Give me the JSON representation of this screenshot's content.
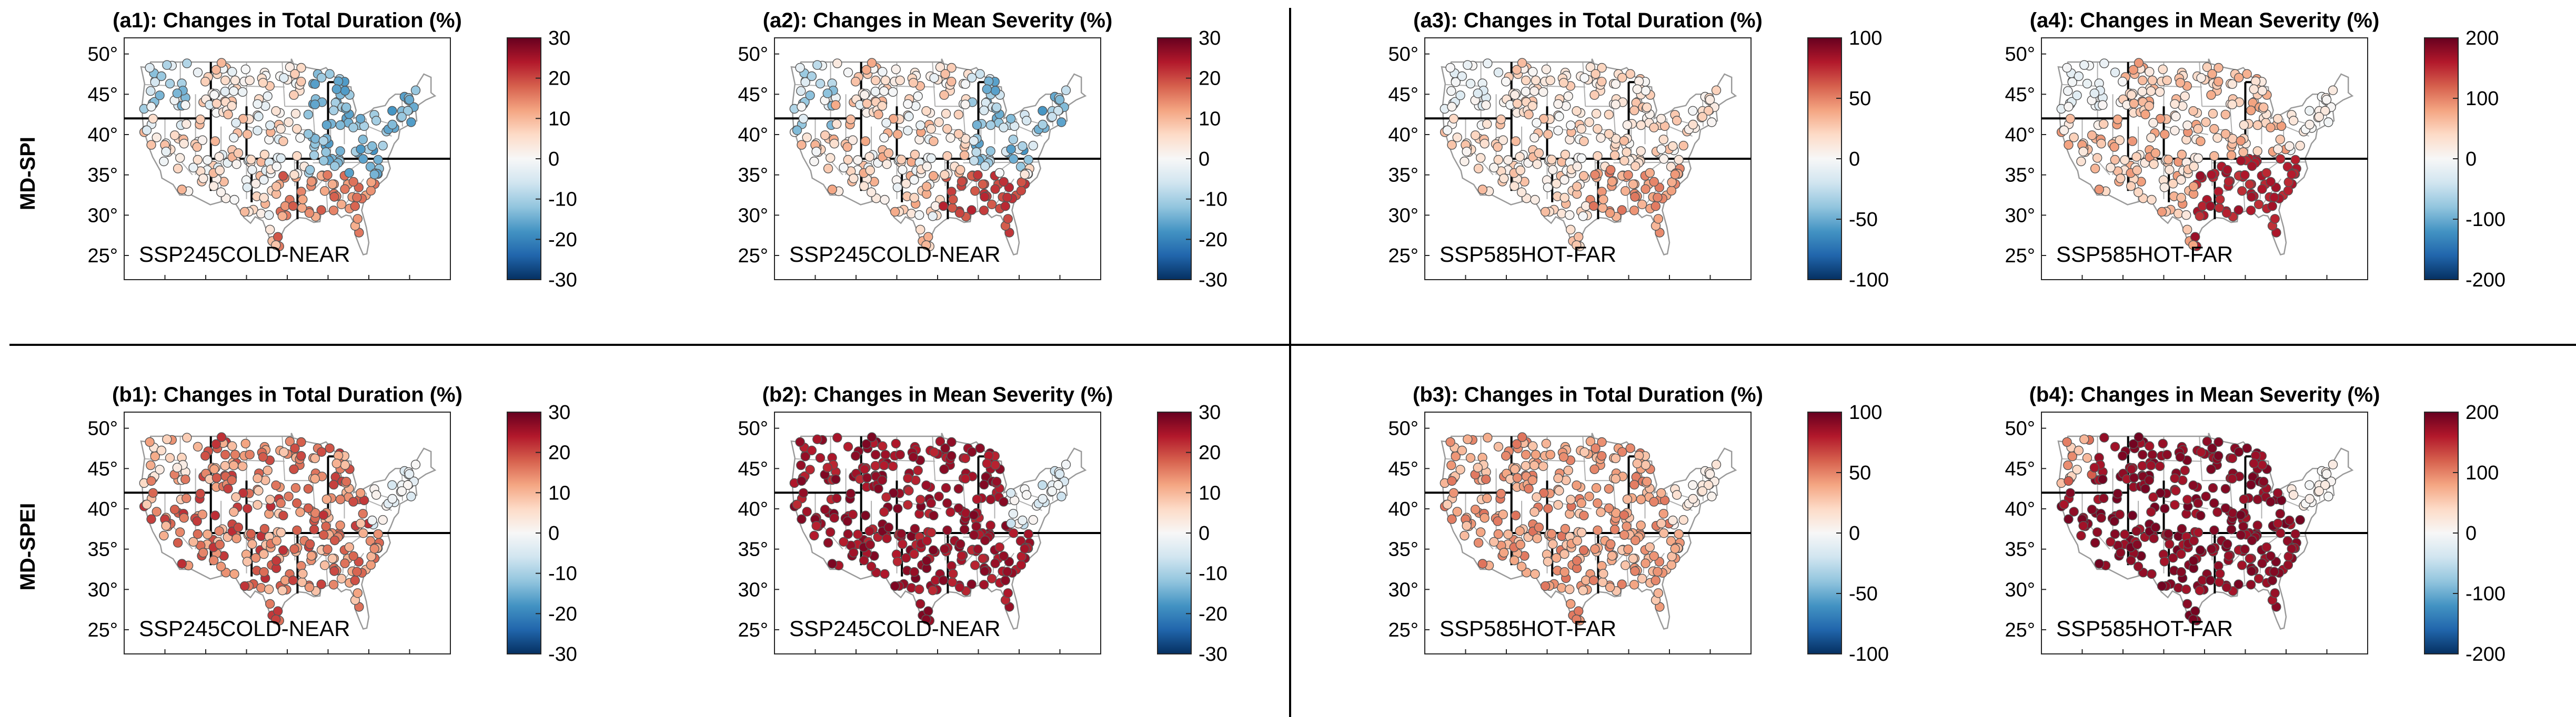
{
  "figure": {
    "rows": [
      {
        "label": "MD-SPI"
      },
      {
        "label": "MD-SPEI"
      }
    ],
    "lat_ticks": [
      "50°",
      "45°",
      "40°",
      "35°",
      "30°",
      "25°"
    ],
    "panels": [
      {
        "id": "a1",
        "title": "(a1): Changes in Total Duration (%)",
        "scenario": "SSP245COLD-NEAR",
        "colorbar": {
          "min": -30,
          "max": 30,
          "ticks": [
            "30",
            "20",
            "10",
            "0",
            "-10",
            "-20",
            "-30"
          ]
        }
      },
      {
        "id": "a2",
        "title": "(a2): Changes in Mean Severity (%)",
        "scenario": "SSP245COLD-NEAR",
        "colorbar": {
          "min": -30,
          "max": 30,
          "ticks": [
            "30",
            "20",
            "10",
            "0",
            "-10",
            "-20",
            "-30"
          ]
        }
      },
      {
        "id": "a3",
        "title": "(a3): Changes in Total Duration (%)",
        "scenario": "SSP585HOT-FAR",
        "colorbar": {
          "min": -100,
          "max": 100,
          "ticks": [
            "100",
            "50",
            "0",
            "-50",
            "-100"
          ]
        }
      },
      {
        "id": "a4",
        "title": "(a4): Changes in Mean Severity (%)",
        "scenario": "SSP585HOT-FAR",
        "colorbar": {
          "min": -200,
          "max": 200,
          "ticks": [
            "200",
            "100",
            "0",
            "-100",
            "-200"
          ]
        }
      },
      {
        "id": "b1",
        "title": "(b1): Changes in Total Duration (%)",
        "scenario": "SSP245COLD-NEAR",
        "colorbar": {
          "min": -30,
          "max": 30,
          "ticks": [
            "30",
            "20",
            "10",
            "0",
            "-10",
            "-20",
            "-30"
          ]
        }
      },
      {
        "id": "b2",
        "title": "(b2): Changes in Mean Severity (%)",
        "scenario": "SSP245COLD-NEAR",
        "colorbar": {
          "min": -30,
          "max": 30,
          "ticks": [
            "30",
            "20",
            "10",
            "0",
            "-10",
            "-20",
            "-30"
          ]
        }
      },
      {
        "id": "b3",
        "title": "(b3): Changes in Total Duration (%)",
        "scenario": "SSP585HOT-FAR",
        "colorbar": {
          "min": -100,
          "max": 100,
          "ticks": [
            "100",
            "50",
            "0",
            "-50",
            "-100"
          ]
        }
      },
      {
        "id": "b4",
        "title": "(b4): Changes in Mean Severity (%)",
        "scenario": "SSP585HOT-FAR",
        "colorbar": {
          "min": -200,
          "max": 200,
          "ticks": [
            "200",
            "100",
            "0",
            "-100",
            "-200"
          ]
        }
      }
    ],
    "colormap": [
      "#053061",
      "#2166ac",
      "#4393c3",
      "#92c5de",
      "#d1e5f0",
      "#f7f7f7",
      "#fddbc7",
      "#f4a582",
      "#d6604d",
      "#b2182b",
      "#67001f"
    ]
  }
}
